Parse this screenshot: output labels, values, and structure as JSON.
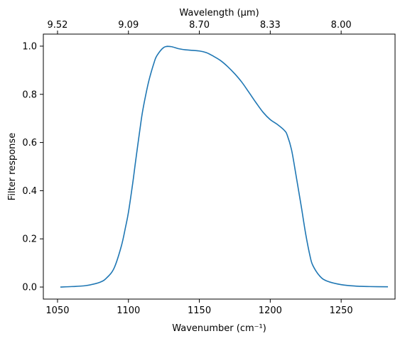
{
  "chart_data": {
    "type": "line",
    "xlabel": "Wavenumber (cm⁻¹)",
    "ylabel": "Filter response",
    "top_xlabel": "Wavelength (μm)",
    "xlim": [
      1040,
      1288
    ],
    "ylim": [
      -0.05,
      1.05
    ],
    "x_ticks": [
      1050,
      1100,
      1150,
      1200,
      1250
    ],
    "x_tick_labels": [
      "1050",
      "1100",
      "1150",
      "1200",
      "1250"
    ],
    "y_ticks": [
      0.0,
      0.2,
      0.4,
      0.6,
      0.8,
      1.0
    ],
    "y_tick_labels": [
      "0.0",
      "0.2",
      "0.4",
      "0.6",
      "0.8",
      "1.0"
    ],
    "top_ticks": [
      1050,
      1100,
      1150,
      1200,
      1250
    ],
    "top_tick_labels": [
      "9.52",
      "9.09",
      "8.70",
      "8.33",
      "8.00"
    ],
    "grid": false,
    "series": [
      {
        "color": "#1f77b4",
        "x": [
          1052,
          1060,
          1070,
          1080,
          1085,
          1090,
          1095,
          1098,
          1100,
          1103,
          1105,
          1108,
          1110,
          1113,
          1115,
          1118,
          1120,
          1125,
          1130,
          1135,
          1140,
          1150,
          1155,
          1160,
          1165,
          1170,
          1175,
          1180,
          1185,
          1190,
          1195,
          1200,
          1205,
          1210,
          1212,
          1215,
          1218,
          1220,
          1222,
          1225,
          1228,
          1230,
          1235,
          1240,
          1250,
          1260,
          1270,
          1283
        ],
        "y": [
          0.0,
          0.002,
          0.006,
          0.02,
          0.04,
          0.08,
          0.17,
          0.25,
          0.31,
          0.43,
          0.52,
          0.65,
          0.73,
          0.82,
          0.87,
          0.93,
          0.96,
          0.995,
          0.998,
          0.99,
          0.985,
          0.98,
          0.973,
          0.958,
          0.94,
          0.915,
          0.885,
          0.85,
          0.808,
          0.765,
          0.725,
          0.695,
          0.675,
          0.65,
          0.63,
          0.57,
          0.47,
          0.4,
          0.33,
          0.22,
          0.13,
          0.09,
          0.045,
          0.025,
          0.01,
          0.004,
          0.002,
          0.001
        ]
      }
    ]
  }
}
